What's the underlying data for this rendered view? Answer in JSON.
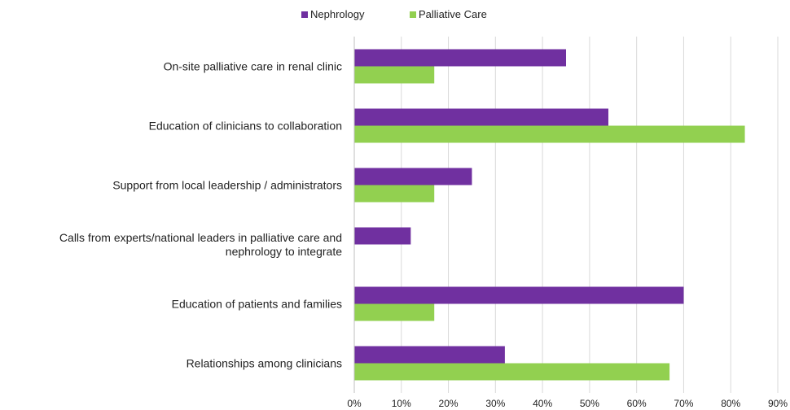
{
  "chart_data": {
    "type": "hbar",
    "categories": [
      "On-site palliative care in renal clinic",
      "Education of clinicians to collaboration",
      "Support from local leadership / administrators",
      "Calls from experts/national leaders in palliative care and nephrology to integrate",
      "Education of patients and families",
      "Relationships among clinicians"
    ],
    "series": [
      {
        "name": "Nephrology",
        "color": "#7030a0",
        "values": [
          45,
          54,
          25,
          12,
          70,
          32
        ]
      },
      {
        "name": "Palliative Care",
        "color": "#92d050",
        "values": [
          17,
          83,
          17,
          0,
          17,
          67
        ]
      }
    ],
    "xlim": [
      0,
      90
    ],
    "xticks": [
      {
        "value": 0,
        "label": "0%"
      },
      {
        "value": 10,
        "label": "10%"
      },
      {
        "value": 20,
        "label": "20%"
      },
      {
        "value": 30,
        "label": "30%"
      },
      {
        "value": 40,
        "label": "40%"
      },
      {
        "value": 50,
        "label": "50%"
      },
      {
        "value": 60,
        "label": "60%"
      },
      {
        "value": 70,
        "label": "70%"
      },
      {
        "value": 80,
        "label": "80%"
      },
      {
        "value": 90,
        "label": "90%"
      }
    ],
    "grid": true,
    "legend": "top"
  }
}
